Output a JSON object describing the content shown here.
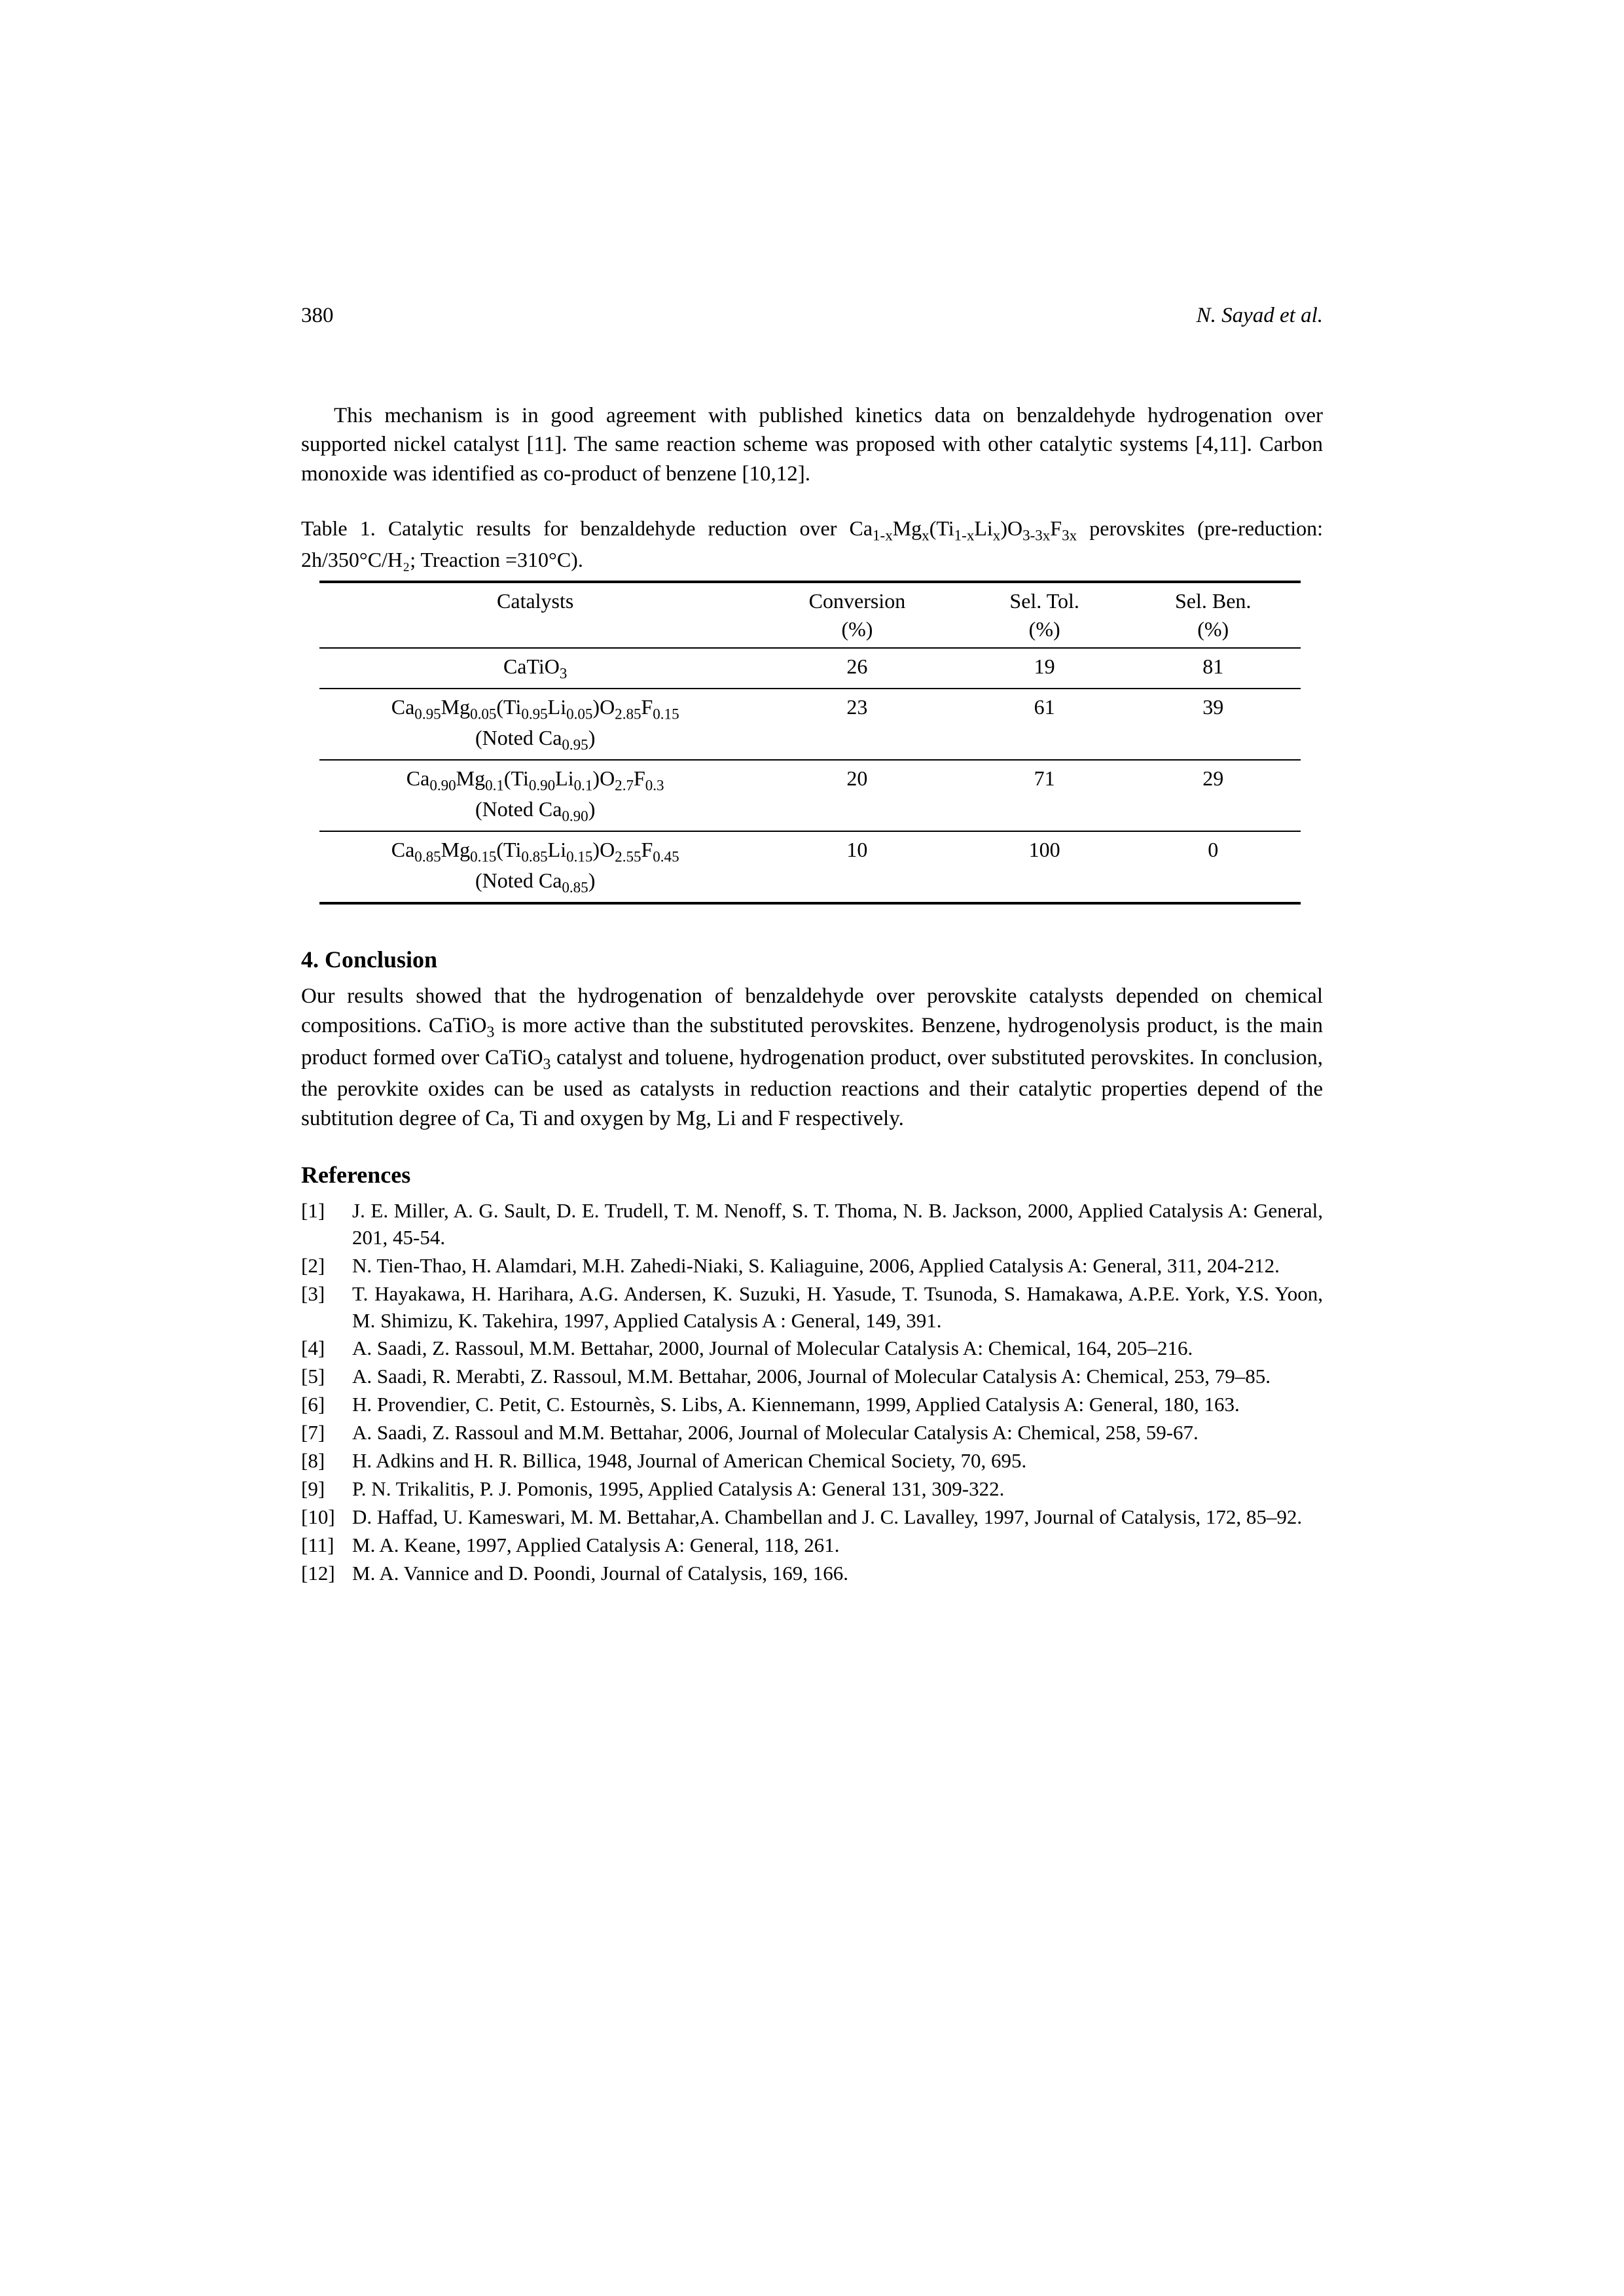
{
  "page": {
    "number": "380",
    "authors": "N. Sayad et al."
  },
  "body": {
    "p1": "This mechanism is in good agreement with published kinetics data on benzaldehyde hydrogenation over supported nickel catalyst [11]. The same reaction scheme was proposed with other catalytic systems [4,11]. Carbon monoxide was identified as co-product of benzene [10,12].",
    "table_caption_pre": "Table 1. Catalytic results for benzaldehyde reduction over Ca",
    "table_caption_post": " perovskites (pre-reduction: 2h/350°C/H₂; Treaction =310°C).",
    "conclusion_heading": "4. Conclusion",
    "conclusion_p_a": "Our results showed that the hydrogenation of benzaldehyde over perovskite catalysts depended on chemical compositions. CaTiO",
    "conclusion_p_b": " is more active than the substituted perovskites. Benzene, hydrogenolysis product, is the main product formed over CaTiO",
    "conclusion_p_c": " catalyst and toluene, hydrogenation product, over substituted perovskites. In conclusion, the perovkite oxides can be used as catalysts in reduction reactions and their catalytic properties depend of the subtitution degree of Ca, Ti and oxygen by Mg, Li and F respectively.",
    "references_heading": "References"
  },
  "table": {
    "columns": [
      "Catalysts",
      "Conversion (%)",
      "Sel. Tol. (%)",
      "Sel. Ben. (%)"
    ],
    "rows": [
      {
        "cat_html": "CaTiO<span class=\"sub\">3</span>",
        "conv": "26",
        "tol": "19",
        "ben": "81"
      },
      {
        "cat_html": "Ca<span class=\"sub\">0.95</span>Mg<span class=\"sub\">0.05</span>(Ti<span class=\"sub\">0.95</span>Li<span class=\"sub\">0.05</span>)O<span class=\"sub\">2.85</span>F<span class=\"sub\">0.15</span><br>(Noted Ca<span class=\"sub\">0.95</span>)",
        "conv": "23",
        "tol": "61",
        "ben": "39"
      },
      {
        "cat_html": "Ca<span class=\"sub\">0.90</span>Mg<span class=\"sub\">0.1</span>(Ti<span class=\"sub\">0.90</span>Li<span class=\"sub\">0.1</span>)O<span class=\"sub\">2.7</span>F<span class=\"sub\">0.3</span><br>(Noted Ca<span class=\"sub\">0.90</span>)",
        "conv": "20",
        "tol": "71",
        "ben": "29"
      },
      {
        "cat_html": "Ca<span class=\"sub\">0.85</span>Mg<span class=\"sub\">0.15</span>(Ti<span class=\"sub\">0.85</span>Li<span class=\"sub\">0.15</span>)O<span class=\"sub\">2.55</span>F<span class=\"sub\">0.45</span><br>(Noted Ca<span class=\"sub\">0.85</span>)",
        "conv": "10",
        "tol": "100",
        "ben": "0"
      }
    ],
    "col_widths": [
      "44%",
      "19%",
      "19%",
      "18%"
    ],
    "border_color": "#000000",
    "background_color": "#ffffff",
    "font_size": 32
  },
  "references": [
    {
      "n": "[1]",
      "t": "J. E. Miller, A. G. Sault, D. E. Trudell, T. M. Nenoff, S. T. Thoma, N. B. Jackson, 2000, Applied Catalysis A: General, 201, 45-54."
    },
    {
      "n": "[2]",
      "t": "N. Tien-Thao, H. Alamdari, M.H. Zahedi-Niaki, S. Kaliaguine, 2006, Applied Catalysis A: General, 311, 204-212."
    },
    {
      "n": "[3]",
      "t": "T. Hayakawa, H. Harihara, A.G. Andersen, K. Suzuki, H. Yasude, T. Tsunoda, S. Hamakawa, A.P.E. York, Y.S. Yoon, M. Shimizu, K. Takehira, 1997, Applied Catalysis A : General, 149, 391."
    },
    {
      "n": "[4]",
      "t": "A. Saadi, Z. Rassoul, M.M. Bettahar, 2000, Journal of Molecular Catalysis A: Chemical, 164, 205–216."
    },
    {
      "n": "[5]",
      "t": "A. Saadi, R. Merabti, Z. Rassoul, M.M. Bettahar, 2006, Journal of Molecular Catalysis A: Chemical, 253, 79–85."
    },
    {
      "n": "[6]",
      "t": "H. Provendier, C. Petit, C. Estournès, S. Libs, A. Kiennemann, 1999, Applied Catalysis A: General, 180, 163."
    },
    {
      "n": "[7]",
      "t": "A. Saadi, Z. Rassoul and M.M. Bettahar, 2006, Journal of Molecular Catalysis A: Chemical, 258, 59-67."
    },
    {
      "n": "[8]",
      "t": "H. Adkins and H. R. Billica, 1948, Journal of American Chemical Society, 70, 695."
    },
    {
      "n": "[9]",
      "t": "P. N. Trikalitis, P. J. Pomonis, 1995, Applied Catalysis A: General 131, 309-322."
    },
    {
      "n": "[10]",
      "t": "D. Haffad, U. Kameswari, M. M. Bettahar,A. Chambellan and J. C. Lavalley, 1997, Journal of Catalysis, 172, 85–92."
    },
    {
      "n": "[11]",
      "t": "M. A. Keane, 1997, Applied Catalysis A: General, 118, 261."
    },
    {
      "n": "[12]",
      "t": "M. A. Vannice and D. Poondi, Journal of Catalysis, 169, 166."
    }
  ],
  "style": {
    "body_font_size": 33,
    "ref_font_size": 31,
    "text_color": "#000000",
    "background_color": "#ffffff"
  }
}
